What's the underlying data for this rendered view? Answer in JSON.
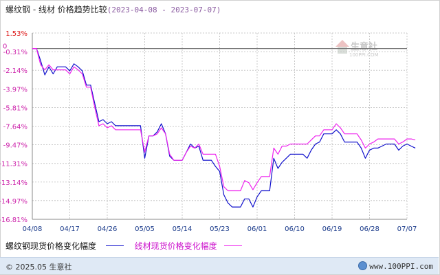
{
  "header": {
    "title": "螺纹钢 - 线材 价格趋势比较",
    "date_range": "(2023-04-08 - 2023-07-07)"
  },
  "watermark": {
    "label": "生意社",
    "sublabel": "100PPI.COM"
  },
  "chart_data": {
    "type": "line",
    "title": "螺纹钢 - 线材 价格趋势比较(2023-04-08 - 2023-07-07)",
    "ylabel_unit": "%",
    "zero_label": "0",
    "yticks": [
      "1.53%",
      "-0.31%",
      "-2.14%",
      "-3.97%",
      "-5.81%",
      "-7.64%",
      "-9.47%",
      "-11.31%",
      "-13.14%",
      "-14.97%",
      "-16.81%"
    ],
    "yticks_values": [
      1.53,
      -0.31,
      -2.14,
      -3.97,
      -5.81,
      -7.64,
      -9.47,
      -11.31,
      -13.14,
      -14.97,
      -16.81
    ],
    "ylim": [
      -16.81,
      1.53
    ],
    "xlabels": [
      "04/08",
      "04/17",
      "04/26",
      "05/05",
      "05/14",
      "05/23",
      "06/01",
      "06/10",
      "06/19",
      "06/28",
      "07/07"
    ],
    "x_day_range": [
      0,
      90
    ],
    "grid": true,
    "colors": {
      "series1": "#1010cc",
      "series2": "#ee22ee",
      "zero_line": "#777777",
      "grid": "#c8c8c8",
      "axis": "#888888"
    },
    "series": [
      {
        "name": "螺纹钢现货价格变化幅度",
        "points": [
          [
            0,
            0
          ],
          [
            1,
            0
          ],
          [
            2,
            -1.2
          ],
          [
            3,
            -2.6
          ],
          [
            4,
            -1.8
          ],
          [
            5,
            -2.5
          ],
          [
            6,
            -1.8
          ],
          [
            7,
            -1.8
          ],
          [
            8,
            -1.8
          ],
          [
            9,
            -2.2
          ],
          [
            10,
            -1.5
          ],
          [
            11,
            -1.8
          ],
          [
            12,
            -2.2
          ],
          [
            13,
            -3.6
          ],
          [
            14,
            -3.6
          ],
          [
            15,
            -5.4
          ],
          [
            16,
            -7.2
          ],
          [
            17,
            -7.0
          ],
          [
            18,
            -7.4
          ],
          [
            19,
            -7.2
          ],
          [
            20,
            -7.6
          ],
          [
            21,
            -7.6
          ],
          [
            22,
            -7.6
          ],
          [
            23,
            -7.6
          ],
          [
            24,
            -7.6
          ],
          [
            25,
            -7.6
          ],
          [
            26,
            -7.6
          ],
          [
            27,
            -10.8
          ],
          [
            28,
            -8.6
          ],
          [
            29,
            -8.6
          ],
          [
            30,
            -8.2
          ],
          [
            31,
            -7.4
          ],
          [
            32,
            -8.4
          ],
          [
            33,
            -10.6
          ],
          [
            34,
            -11.0
          ],
          [
            35,
            -11.0
          ],
          [
            36,
            -11.0
          ],
          [
            37,
            -10.2
          ],
          [
            38,
            -9.4
          ],
          [
            39,
            -9.8
          ],
          [
            40,
            -9.6
          ],
          [
            41,
            -11.0
          ],
          [
            42,
            -11.0
          ],
          [
            43,
            -11.0
          ],
          [
            44,
            -11.6
          ],
          [
            45,
            -12.1
          ],
          [
            46,
            -14.4
          ],
          [
            47,
            -15.2
          ],
          [
            48,
            -15.6
          ],
          [
            49,
            -15.6
          ],
          [
            50,
            -15.6
          ],
          [
            51,
            -14.8
          ],
          [
            52,
            -14.8
          ],
          [
            53,
            -15.6
          ],
          [
            54,
            -14.6
          ],
          [
            55,
            -14.0
          ],
          [
            56,
            -14.0
          ],
          [
            57,
            -14.0
          ],
          [
            58,
            -10.8
          ],
          [
            59,
            -11.8
          ],
          [
            60,
            -11.2
          ],
          [
            61,
            -10.8
          ],
          [
            62,
            -10.4
          ],
          [
            63,
            -10.4
          ],
          [
            64,
            -10.4
          ],
          [
            65,
            -10.4
          ],
          [
            66,
            -10.8
          ],
          [
            67,
            -10.0
          ],
          [
            68,
            -9.4
          ],
          [
            69,
            -9.2
          ],
          [
            70,
            -8.4
          ],
          [
            71,
            -8.4
          ],
          [
            72,
            -8.4
          ],
          [
            73,
            -8.0
          ],
          [
            74,
            -8.4
          ],
          [
            75,
            -9.2
          ],
          [
            76,
            -9.2
          ],
          [
            77,
            -9.2
          ],
          [
            78,
            -9.2
          ],
          [
            79,
            -9.8
          ],
          [
            80,
            -10.8
          ],
          [
            81,
            -10.0
          ],
          [
            82,
            -9.8
          ],
          [
            83,
            -9.8
          ],
          [
            84,
            -9.6
          ],
          [
            85,
            -9.4
          ],
          [
            86,
            -9.4
          ],
          [
            87,
            -9.4
          ],
          [
            88,
            -10.0
          ],
          [
            89,
            -9.6
          ],
          [
            90,
            -9.4
          ],
          [
            91,
            -9.6
          ],
          [
            92,
            -9.8
          ]
        ]
      },
      {
        "name": "线材现货价格变化幅度",
        "points": [
          [
            0,
            0
          ],
          [
            1,
            0
          ],
          [
            2,
            -1.6
          ],
          [
            3,
            -2.1
          ],
          [
            4,
            -1.6
          ],
          [
            5,
            -2.1
          ],
          [
            6,
            -2.1
          ],
          [
            7,
            -2.1
          ],
          [
            8,
            -2.1
          ],
          [
            9,
            -2.5
          ],
          [
            10,
            -1.8
          ],
          [
            11,
            -2.1
          ],
          [
            12,
            -2.5
          ],
          [
            13,
            -3.8
          ],
          [
            14,
            -3.8
          ],
          [
            15,
            -5.8
          ],
          [
            16,
            -7.6
          ],
          [
            17,
            -7.4
          ],
          [
            18,
            -7.8
          ],
          [
            19,
            -7.6
          ],
          [
            20,
            -8.0
          ],
          [
            21,
            -8.0
          ],
          [
            22,
            -8.0
          ],
          [
            23,
            -8.0
          ],
          [
            24,
            -8.0
          ],
          [
            25,
            -8.0
          ],
          [
            26,
            -8.0
          ],
          [
            27,
            -10.2
          ],
          [
            28,
            -8.6
          ],
          [
            29,
            -8.6
          ],
          [
            30,
            -8.4
          ],
          [
            31,
            -7.8
          ],
          [
            32,
            -8.4
          ],
          [
            33,
            -10.4
          ],
          [
            34,
            -11.0
          ],
          [
            35,
            -11.0
          ],
          [
            36,
            -11.0
          ],
          [
            37,
            -10.2
          ],
          [
            38,
            -9.6
          ],
          [
            39,
            -9.8
          ],
          [
            40,
            -9.4
          ],
          [
            41,
            -10.4
          ],
          [
            42,
            -10.4
          ],
          [
            43,
            -10.4
          ],
          [
            44,
            -10.4
          ],
          [
            45,
            -11.6
          ],
          [
            46,
            -13.6
          ],
          [
            47,
            -14.0
          ],
          [
            48,
            -14.0
          ],
          [
            49,
            -14.0
          ],
          [
            50,
            -14.0
          ],
          [
            51,
            -13.0
          ],
          [
            52,
            -13.2
          ],
          [
            53,
            -13.9
          ],
          [
            54,
            -13.2
          ],
          [
            55,
            -12.6
          ],
          [
            56,
            -12.6
          ],
          [
            57,
            -12.6
          ],
          [
            58,
            -9.8
          ],
          [
            59,
            -10.4
          ],
          [
            60,
            -9.6
          ],
          [
            61,
            -9.6
          ],
          [
            62,
            -9.4
          ],
          [
            63,
            -9.4
          ],
          [
            64,
            -9.4
          ],
          [
            65,
            -9.4
          ],
          [
            66,
            -9.4
          ],
          [
            67,
            -9.0
          ],
          [
            68,
            -8.6
          ],
          [
            69,
            -8.6
          ],
          [
            70,
            -8.0
          ],
          [
            71,
            -8.0
          ],
          [
            72,
            -8.0
          ],
          [
            73,
            -7.4
          ],
          [
            74,
            -7.8
          ],
          [
            75,
            -8.4
          ],
          [
            76,
            -8.4
          ],
          [
            77,
            -8.4
          ],
          [
            78,
            -8.4
          ],
          [
            79,
            -9.0
          ],
          [
            80,
            -9.8
          ],
          [
            81,
            -9.4
          ],
          [
            82,
            -9.2
          ],
          [
            83,
            -8.9
          ],
          [
            84,
            -8.9
          ],
          [
            85,
            -8.9
          ],
          [
            86,
            -8.9
          ],
          [
            87,
            -8.9
          ],
          [
            88,
            -9.4
          ],
          [
            89,
            -9.2
          ],
          [
            90,
            -8.9
          ],
          [
            91,
            -8.9
          ],
          [
            92,
            -9.0
          ]
        ]
      }
    ]
  },
  "legend": {
    "series1_label": "螺纹钢现货价格变化幅度",
    "series2_label": "线材现货价格变化幅度"
  },
  "footer": {
    "copyright": "© 2025.05 生意社",
    "site": "www.100PPI.com"
  }
}
